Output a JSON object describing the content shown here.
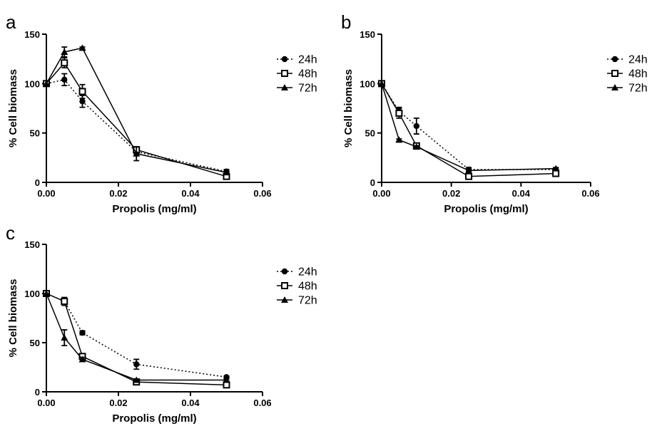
{
  "chart_data": [
    {
      "type": "line",
      "panel": "a",
      "xlabel": "Propolis (mg/ml)",
      "ylabel": "% Cell biomass",
      "xlim": [
        0,
        0.06
      ],
      "ylim": [
        0,
        150
      ],
      "xticks": [
        "0.00",
        "0.02",
        "0.04",
        "0.06"
      ],
      "yticks": [
        "0",
        "50",
        "100",
        "150"
      ],
      "grid": false,
      "legend_placement": "right",
      "series": [
        {
          "name": "24h",
          "marker": "circle",
          "line": "dotted",
          "x": [
            0,
            0.005,
            0.01,
            0.025,
            0.05
          ],
          "y": [
            100,
            104,
            82,
            31,
            11
          ],
          "err": [
            0,
            6,
            6,
            2,
            2
          ]
        },
        {
          "name": "48h",
          "marker": "square",
          "line": "solid",
          "x": [
            0,
            0.005,
            0.01,
            0.025,
            0.05
          ],
          "y": [
            100,
            121,
            92,
            33,
            6
          ],
          "err": [
            0,
            5,
            7,
            3,
            2
          ]
        },
        {
          "name": "72h",
          "marker": "triangle",
          "line": "solid",
          "x": [
            0,
            0.005,
            0.01,
            0.025,
            0.05
          ],
          "y": [
            100,
            132,
            136,
            29,
            10
          ],
          "err": [
            0,
            5,
            1,
            7,
            1
          ]
        }
      ]
    },
    {
      "type": "line",
      "panel": "b",
      "xlabel": "Propolis (mg/ml)",
      "ylabel": "% Cell biomass",
      "xlim": [
        0,
        0.06
      ],
      "ylim": [
        0,
        150
      ],
      "xticks": [
        "0.00",
        "0.02",
        "0.04",
        "0.06"
      ],
      "yticks": [
        "0",
        "50",
        "100",
        "150"
      ],
      "grid": false,
      "legend_placement": "right",
      "series": [
        {
          "name": "24h",
          "marker": "circle",
          "line": "dotted",
          "x": [
            0,
            0.005,
            0.01,
            0.025,
            0.05
          ],
          "y": [
            100,
            72,
            57,
            13,
            13
          ],
          "err": [
            0,
            4,
            8,
            2,
            1
          ]
        },
        {
          "name": "48h",
          "marker": "square",
          "line": "solid",
          "x": [
            0,
            0.005,
            0.01,
            0.025,
            0.05
          ],
          "y": [
            100,
            70,
            37,
            6,
            9
          ],
          "err": [
            0,
            5,
            2,
            1,
            1
          ]
        },
        {
          "name": "72h",
          "marker": "triangle",
          "line": "solid",
          "x": [
            0,
            0.005,
            0.01,
            0.025,
            0.05
          ],
          "y": [
            100,
            43,
            36,
            12,
            14
          ],
          "err": [
            0,
            1,
            1,
            2,
            1
          ]
        }
      ]
    },
    {
      "type": "line",
      "panel": "c",
      "xlabel": "Propolis (mg/ml)",
      "ylabel": "% Cell biomass",
      "xlim": [
        0,
        0.06
      ],
      "ylim": [
        0,
        150
      ],
      "xticks": [
        "0.00",
        "0.02",
        "0.04",
        "0.06"
      ],
      "yticks": [
        "0",
        "50",
        "100",
        "150"
      ],
      "grid": false,
      "legend_placement": "right",
      "series": [
        {
          "name": "24h",
          "marker": "circle",
          "line": "dotted",
          "x": [
            0,
            0.005,
            0.01,
            0.025,
            0.05
          ],
          "y": [
            100,
            92,
            60,
            28,
            15
          ],
          "err": [
            0,
            3,
            2,
            5,
            1
          ]
        },
        {
          "name": "48h",
          "marker": "square",
          "line": "solid",
          "x": [
            0,
            0.005,
            0.01,
            0.025,
            0.05
          ],
          "y": [
            100,
            92,
            36,
            10,
            7
          ],
          "err": [
            0,
            4,
            2,
            2,
            1
          ]
        },
        {
          "name": "72h",
          "marker": "triangle",
          "line": "solid",
          "x": [
            0,
            0.005,
            0.01,
            0.025,
            0.05
          ],
          "y": [
            100,
            55,
            33,
            12,
            12
          ],
          "err": [
            0,
            8,
            2,
            1,
            1
          ]
        }
      ]
    }
  ],
  "colors": {
    "line": "#000000",
    "background": "#ffffff"
  }
}
